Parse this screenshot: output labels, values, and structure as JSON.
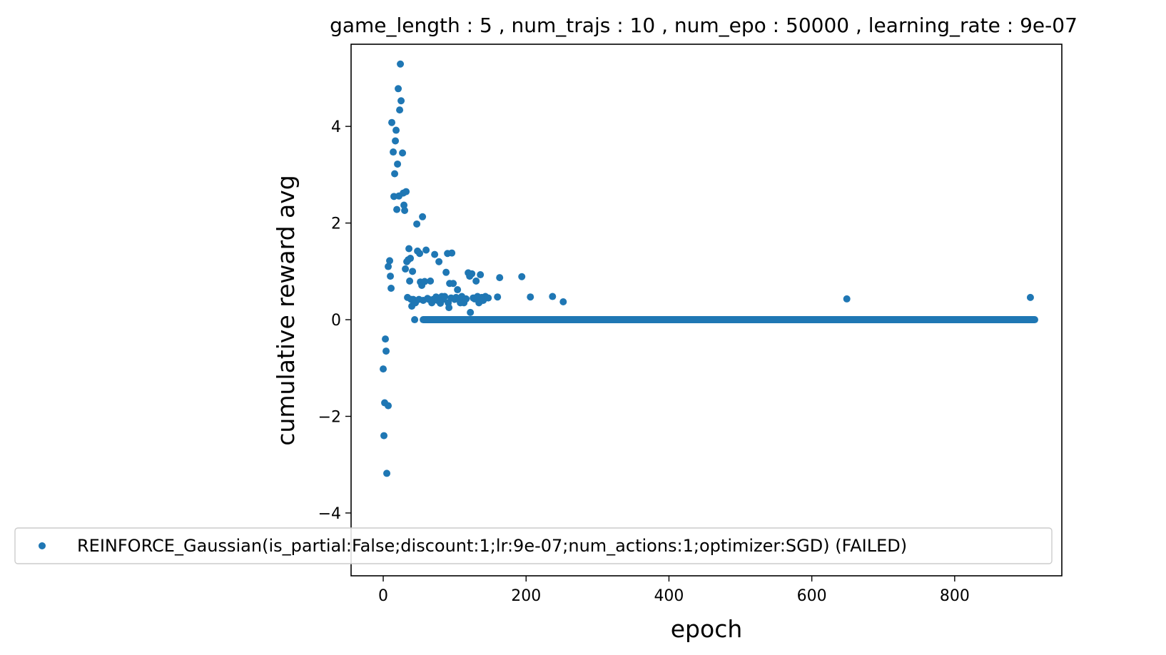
{
  "chart_data": {
    "type": "scatter",
    "title": "game_length : 5 , num_trajs : 10 , num_epo : 50000 , learning_rate : 9e-07",
    "xlabel": "epoch",
    "ylabel": "cumulative reward avg",
    "xlim": [
      -45,
      950
    ],
    "ylim": [
      -5.3,
      5.7
    ],
    "xticks": [
      0,
      200,
      400,
      600,
      800
    ],
    "yticks": [
      -4,
      -2,
      0,
      2,
      4
    ],
    "xtick_labels": [
      "0",
      "200",
      "400",
      "600",
      "800"
    ],
    "ytick_labels": [
      "−4",
      "−2",
      "0",
      "2",
      "4"
    ],
    "grid": false,
    "legend_placement": "lower-left",
    "color": "#1f77b4",
    "series": [
      {
        "name": "REINFORCE_Gaussian(is_partial:False;discount:1;lr:9e-07;num_actions:1;optimizer:SGD) (FAILED)",
        "points": [
          [
            0,
            -1.02
          ],
          [
            1,
            -2.4
          ],
          [
            2,
            -1.72
          ],
          [
            3,
            -0.4
          ],
          [
            4,
            -0.65
          ],
          [
            5,
            -3.18
          ],
          [
            7,
            1.1
          ],
          [
            7,
            -1.78
          ],
          [
            9,
            1.22
          ],
          [
            10,
            0.9
          ],
          [
            11,
            0.65
          ],
          [
            12,
            4.08
          ],
          [
            14,
            3.47
          ],
          [
            15,
            2.55
          ],
          [
            16,
            3.02
          ],
          [
            17,
            3.7
          ],
          [
            18,
            3.92
          ],
          [
            19,
            2.28
          ],
          [
            20,
            3.22
          ],
          [
            21,
            4.78
          ],
          [
            22,
            2.56
          ],
          [
            23,
            4.34
          ],
          [
            24,
            5.29
          ],
          [
            25,
            4.53
          ],
          [
            27,
            3.45
          ],
          [
            28,
            2.62
          ],
          [
            29,
            2.37
          ],
          [
            30,
            2.26
          ],
          [
            31,
            1.05
          ],
          [
            32,
            2.65
          ],
          [
            33,
            1.2
          ],
          [
            34,
            0.46
          ],
          [
            35,
            1.24
          ],
          [
            36,
            1.47
          ],
          [
            37,
            0.8
          ],
          [
            38,
            1.27
          ],
          [
            39,
            0.42
          ],
          [
            40,
            0.28
          ],
          [
            41,
            1.0
          ],
          [
            42,
            0.42
          ],
          [
            44,
            0.0
          ],
          [
            45,
            0.35
          ],
          [
            47,
            1.98
          ],
          [
            48,
            1.42
          ],
          [
            50,
            0.42
          ],
          [
            51,
            1.37
          ],
          [
            52,
            0.78
          ],
          [
            54,
            0.71
          ],
          [
            55,
            2.13
          ],
          [
            56,
            0.4
          ],
          [
            58,
            0.79
          ],
          [
            60,
            1.44
          ],
          [
            62,
            0.44
          ],
          [
            64,
            0.42
          ],
          [
            66,
            0.8
          ],
          [
            68,
            0.35
          ],
          [
            70,
            0.42
          ],
          [
            72,
            1.35
          ],
          [
            74,
            0.47
          ],
          [
            76,
            0.4
          ],
          [
            78,
            1.2
          ],
          [
            80,
            0.34
          ],
          [
            82,
            0.48
          ],
          [
            84,
            0.42
          ],
          [
            86,
            0.48
          ],
          [
            88,
            0.98
          ],
          [
            90,
            1.37
          ],
          [
            91,
            0.35
          ],
          [
            92,
            0.25
          ],
          [
            93,
            0.75
          ],
          [
            95,
            0.45
          ],
          [
            96,
            1.38
          ],
          [
            98,
            0.75
          ],
          [
            100,
            0.42
          ],
          [
            102,
            0.46
          ],
          [
            104,
            0.62
          ],
          [
            106,
            0.42
          ],
          [
            108,
            0.35
          ],
          [
            110,
            0.48
          ],
          [
            113,
            0.35
          ],
          [
            116,
            0.43
          ],
          [
            119,
            0.97
          ],
          [
            121,
            0.9
          ],
          [
            122,
            0.15
          ],
          [
            124,
            0.95
          ],
          [
            126,
            0.45
          ],
          [
            128,
            0.43
          ],
          [
            130,
            0.8
          ],
          [
            132,
            0.48
          ],
          [
            134,
            0.35
          ],
          [
            136,
            0.93
          ],
          [
            138,
            0.46
          ],
          [
            140,
            0.4
          ],
          [
            143,
            0.48
          ],
          [
            147,
            0.45
          ],
          [
            160,
            0.47
          ],
          [
            163,
            0.87
          ],
          [
            194,
            0.89
          ],
          [
            206,
            0.47
          ],
          [
            237,
            0.48
          ],
          [
            252,
            0.37
          ],
          [
            649,
            0.43
          ],
          [
            906,
            0.46
          ]
        ],
        "zero_run_range": [
          56,
          912
        ]
      }
    ]
  }
}
